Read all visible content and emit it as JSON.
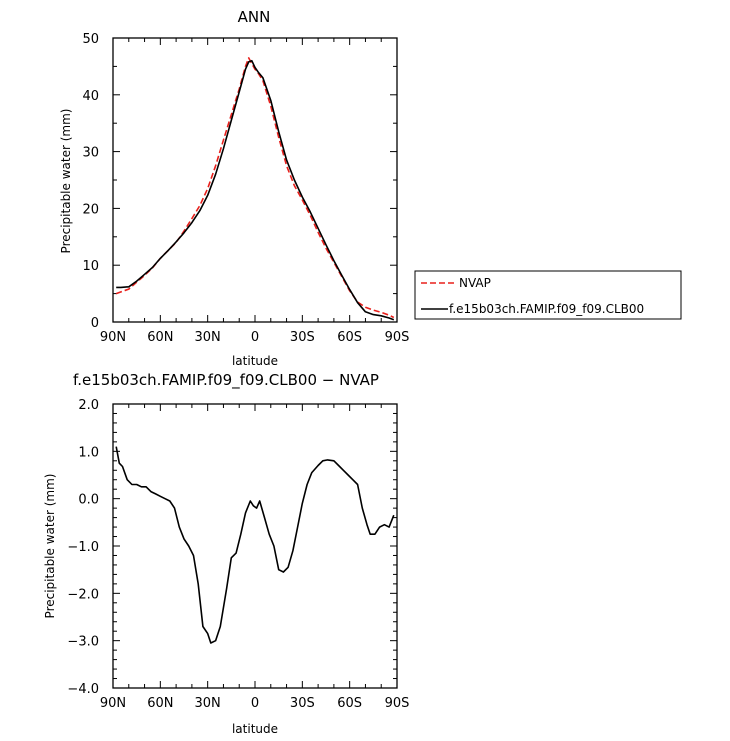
{
  "chart_data": [
    {
      "type": "line",
      "title": "ANN",
      "xlabel": "latitude",
      "ylabel": "Precipitable water (mm)",
      "xlim": [
        90,
        -90
      ],
      "ylim": [
        0,
        50
      ],
      "xticks": [
        90,
        60,
        30,
        0,
        -30,
        -60,
        -90
      ],
      "xtick_labels": [
        "90N",
        "60N",
        "30N",
        "0",
        "30S",
        "60S",
        "90S"
      ],
      "yticks": [
        0,
        10,
        20,
        30,
        40,
        50
      ],
      "ytick_labels": [
        "0",
        "10",
        "20",
        "30",
        "40",
        "50"
      ],
      "legend_position": "right",
      "series": [
        {
          "name": "NVAP",
          "color": "#e8201c",
          "style": "dashed",
          "points": [
            [
              88,
              5.0
            ],
            [
              85,
              5.3
            ],
            [
              80,
              5.8
            ],
            [
              75,
              7.0
            ],
            [
              70,
              8.2
            ],
            [
              65,
              9.5
            ],
            [
              60,
              11.2
            ],
            [
              55,
              12.6
            ],
            [
              50,
              14.0
            ],
            [
              45,
              16.0
            ],
            [
              40,
              18.2
            ],
            [
              35,
              20.5
            ],
            [
              30,
              23.5
            ],
            [
              25,
              27.5
            ],
            [
              20,
              32.0
            ],
            [
              15,
              36.5
            ],
            [
              10,
              41.0
            ],
            [
              6,
              45.0
            ],
            [
              4,
              46.5
            ],
            [
              2,
              45.5
            ],
            [
              0,
              44.5
            ],
            [
              -2,
              43.8
            ],
            [
              -5,
              42.5
            ],
            [
              -10,
              38.0
            ],
            [
              -15,
              32.5
            ],
            [
              -20,
              27.5
            ],
            [
              -25,
              24.0
            ],
            [
              -30,
              21.5
            ],
            [
              -35,
              18.8
            ],
            [
              -40,
              15.8
            ],
            [
              -45,
              13.0
            ],
            [
              -50,
              10.5
            ],
            [
              -55,
              8.0
            ],
            [
              -60,
              5.5
            ],
            [
              -65,
              3.5
            ],
            [
              -70,
              2.6
            ],
            [
              -75,
              2.1
            ],
            [
              -80,
              1.7
            ],
            [
              -85,
              1.2
            ],
            [
              -88,
              0.8
            ]
          ]
        },
        {
          "name": "f.e15b03ch.FAMIP.f09_f09.CLB00",
          "color": "#000000",
          "style": "solid",
          "points": [
            [
              88,
              6.1
            ],
            [
              85,
              6.1
            ],
            [
              80,
              6.2
            ],
            [
              75,
              7.2
            ],
            [
              70,
              8.4
            ],
            [
              65,
              9.6
            ],
            [
              60,
              11.2
            ],
            [
              55,
              12.6
            ],
            [
              50,
              14.1
            ],
            [
              45,
              15.7
            ],
            [
              40,
              17.5
            ],
            [
              35,
              19.6
            ],
            [
              30,
              22.3
            ],
            [
              25,
              26.0
            ],
            [
              20,
              30.5
            ],
            [
              15,
              35.5
            ],
            [
              10,
              40.5
            ],
            [
              6,
              44.5
            ],
            [
              4,
              45.8
            ],
            [
              2,
              46.0
            ],
            [
              0,
              44.8
            ],
            [
              -2,
              44.0
            ],
            [
              -5,
              43.0
            ],
            [
              -10,
              39.0
            ],
            [
              -15,
              33.5
            ],
            [
              -20,
              28.5
            ],
            [
              -25,
              25.0
            ],
            [
              -30,
              22.0
            ],
            [
              -35,
              19.4
            ],
            [
              -40,
              16.5
            ],
            [
              -45,
              13.6
            ],
            [
              -50,
              10.8
            ],
            [
              -55,
              8.2
            ],
            [
              -60,
              5.7
            ],
            [
              -65,
              3.4
            ],
            [
              -70,
              1.8
            ],
            [
              -75,
              1.3
            ],
            [
              -80,
              1.1
            ],
            [
              -85,
              0.7
            ],
            [
              -88,
              0.4
            ]
          ]
        }
      ]
    },
    {
      "type": "line",
      "title": "f.e15b03ch.FAMIP.f09_f09.CLB00 − NVAP",
      "xlabel": "latitude",
      "ylabel": "Precipitable water (mm)",
      "xlim": [
        90,
        -90
      ],
      "ylim": [
        -4,
        2
      ],
      "xticks": [
        90,
        60,
        30,
        0,
        -30,
        -60,
        -90
      ],
      "xtick_labels": [
        "90N",
        "60N",
        "30N",
        "0",
        "30S",
        "60S",
        "90S"
      ],
      "yticks": [
        2,
        1,
        0,
        -1,
        -2,
        -3,
        -4
      ],
      "ytick_labels": [
        "2.0",
        "1.0",
        "0.0",
        "−1.0",
        "−2.0",
        "−3.0",
        "−4.0"
      ],
      "series": [
        {
          "color": "#000000",
          "style": "solid",
          "points": [
            [
              88,
              1.1
            ],
            [
              86,
              0.75
            ],
            [
              84,
              0.68
            ],
            [
              81,
              0.4
            ],
            [
              78,
              0.3
            ],
            [
              75,
              0.3
            ],
            [
              72,
              0.25
            ],
            [
              69,
              0.25
            ],
            [
              66,
              0.15
            ],
            [
              63,
              0.1
            ],
            [
              60,
              0.05
            ],
            [
              57,
              0.0
            ],
            [
              54,
              -0.05
            ],
            [
              51,
              -0.2
            ],
            [
              48,
              -0.6
            ],
            [
              45,
              -0.85
            ],
            [
              42,
              -1.0
            ],
            [
              39,
              -1.2
            ],
            [
              36,
              -1.8
            ],
            [
              33,
              -2.7
            ],
            [
              30,
              -2.85
            ],
            [
              28,
              -3.05
            ],
            [
              25,
              -3.0
            ],
            [
              22,
              -2.7
            ],
            [
              18,
              -1.9
            ],
            [
              15,
              -1.25
            ],
            [
              12,
              -1.15
            ],
            [
              9,
              -0.75
            ],
            [
              6,
              -0.3
            ],
            [
              3,
              -0.05
            ],
            [
              1,
              -0.15
            ],
            [
              -1,
              -0.2
            ],
            [
              -3,
              -0.05
            ],
            [
              -6,
              -0.4
            ],
            [
              -9,
              -0.75
            ],
            [
              -12,
              -1.0
            ],
            [
              -15,
              -1.5
            ],
            [
              -18,
              -1.55
            ],
            [
              -21,
              -1.45
            ],
            [
              -24,
              -1.1
            ],
            [
              -27,
              -0.6
            ],
            [
              -30,
              -0.1
            ],
            [
              -33,
              0.3
            ],
            [
              -36,
              0.55
            ],
            [
              -40,
              0.7
            ],
            [
              -43,
              0.8
            ],
            [
              -46,
              0.82
            ],
            [
              -50,
              0.8
            ],
            [
              -53,
              0.7
            ],
            [
              -56,
              0.6
            ],
            [
              -59,
              0.5
            ],
            [
              -62,
              0.4
            ],
            [
              -65,
              0.3
            ],
            [
              -68,
              -0.2
            ],
            [
              -71,
              -0.55
            ],
            [
              -73,
              -0.75
            ],
            [
              -76,
              -0.75
            ],
            [
              -79,
              -0.6
            ],
            [
              -82,
              -0.55
            ],
            [
              -85,
              -0.6
            ],
            [
              -88,
              -0.35
            ]
          ]
        }
      ]
    }
  ]
}
